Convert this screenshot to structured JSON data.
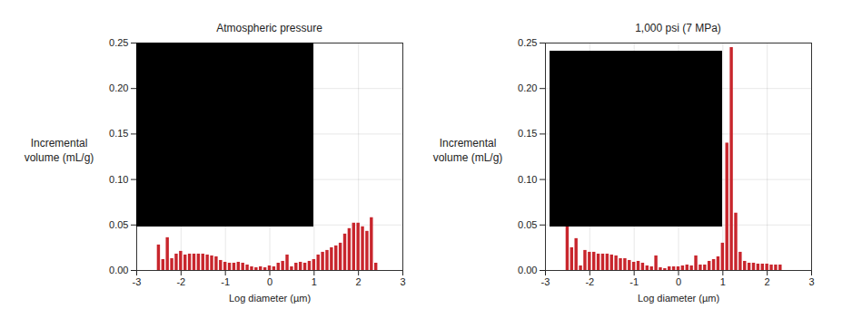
{
  "chart_data": [
    {
      "type": "bar",
      "title": "Atmospheric pressure",
      "xlabel": "Log diameter (µm)",
      "ylabel": "Incremental volume (mL/g)",
      "x": [
        -2.5,
        -2.4,
        -2.3,
        -2.2,
        -2.1,
        -2.0,
        -1.9,
        -1.8,
        -1.7,
        -1.6,
        -1.5,
        -1.4,
        -1.3,
        -1.2,
        -1.1,
        -1.0,
        -0.9,
        -0.8,
        -0.7,
        -0.6,
        -0.5,
        -0.4,
        -0.3,
        -0.2,
        -0.1,
        0.0,
        0.1,
        0.2,
        0.3,
        0.4,
        0.5,
        0.6,
        0.7,
        0.8,
        0.9,
        1.0,
        1.1,
        1.2,
        1.3,
        1.4,
        1.5,
        1.6,
        1.7,
        1.8,
        1.9,
        2.0,
        2.1,
        2.2,
        2.3,
        2.4
      ],
      "values": [
        0.028,
        0.012,
        0.036,
        0.013,
        0.018,
        0.021,
        0.017,
        0.018,
        0.018,
        0.018,
        0.018,
        0.017,
        0.016,
        0.015,
        0.011,
        0.009,
        0.008,
        0.008,
        0.009,
        0.008,
        0.006,
        0.004,
        0.003,
        0.004,
        0.003,
        0.005,
        0.004,
        0.008,
        0.01,
        0.017,
        0.004,
        0.008,
        0.009,
        0.008,
        0.01,
        0.012,
        0.017,
        0.02,
        0.022,
        0.025,
        0.027,
        0.03,
        0.04,
        0.046,
        0.052,
        0.052,
        0.048,
        0.043,
        0.058,
        0.008
      ],
      "color": "#c8252c",
      "xlim": [
        -3,
        3
      ],
      "xticks": [
        -3,
        -2,
        -1,
        0,
        1,
        2,
        3
      ],
      "ylim": [
        0,
        0.25
      ],
      "yticks": [
        {
          "value": 0,
          "label": "0.00"
        },
        {
          "value": 0.05,
          "label": "0.05"
        },
        {
          "value": 0.1,
          "label": "0.10"
        },
        {
          "value": 0.15,
          "label": "0.15"
        },
        {
          "value": 0.2,
          "label": "0.20"
        },
        {
          "value": 0.25,
          "label": "0.25"
        }
      ],
      "grid": true
    },
    {
      "type": "bar",
      "title": "1,000 psi (7 MPa)",
      "xlabel": "Log diameter (µm)",
      "ylabel": "Incremental volume (mL/g)",
      "x": [
        -2.5,
        -2.4,
        -2.3,
        -2.2,
        -2.1,
        -2.0,
        -1.9,
        -1.8,
        -1.7,
        -1.6,
        -1.5,
        -1.4,
        -1.3,
        -1.2,
        -1.1,
        -1.0,
        -0.9,
        -0.8,
        -0.7,
        -0.6,
        -0.5,
        -0.4,
        -0.3,
        -0.2,
        -0.1,
        0.0,
        0.1,
        0.2,
        0.3,
        0.4,
        0.5,
        0.6,
        0.7,
        0.8,
        0.9,
        1.0,
        1.1,
        1.2,
        1.3,
        1.4,
        1.5,
        1.6,
        1.7,
        1.8,
        1.9,
        2.0,
        2.1,
        2.2,
        2.3
      ],
      "values": [
        0.055,
        0.025,
        0.035,
        0.005,
        0.022,
        0.02,
        0.02,
        0.018,
        0.018,
        0.018,
        0.017,
        0.016,
        0.013,
        0.013,
        0.011,
        0.009,
        0.01,
        0.008,
        0.005,
        0.004,
        0.016,
        0.003,
        0.002,
        0.004,
        0.004,
        0.004,
        0.005,
        0.006,
        0.005,
        0.016,
        0.006,
        0.006,
        0.01,
        0.012,
        0.015,
        0.03,
        0.14,
        0.245,
        0.063,
        0.02,
        0.01,
        0.008,
        0.008,
        0.007,
        0.007,
        0.007,
        0.006,
        0.006,
        0.006
      ],
      "color": "#c8252c",
      "xlim": [
        -3,
        3
      ],
      "xticks": [
        -3,
        -2,
        -1,
        0,
        1,
        2,
        3
      ],
      "ylim": [
        0,
        0.25
      ],
      "yticks": [
        {
          "value": 0,
          "label": "0.00"
        },
        {
          "value": 0.05,
          "label": "0.05"
        },
        {
          "value": 0.1,
          "label": "0.10"
        },
        {
          "value": 0.15,
          "label": "0.15"
        },
        {
          "value": 0.2,
          "label": "0.20"
        },
        {
          "value": 0.25,
          "label": "0.25"
        }
      ],
      "grid": true
    }
  ]
}
